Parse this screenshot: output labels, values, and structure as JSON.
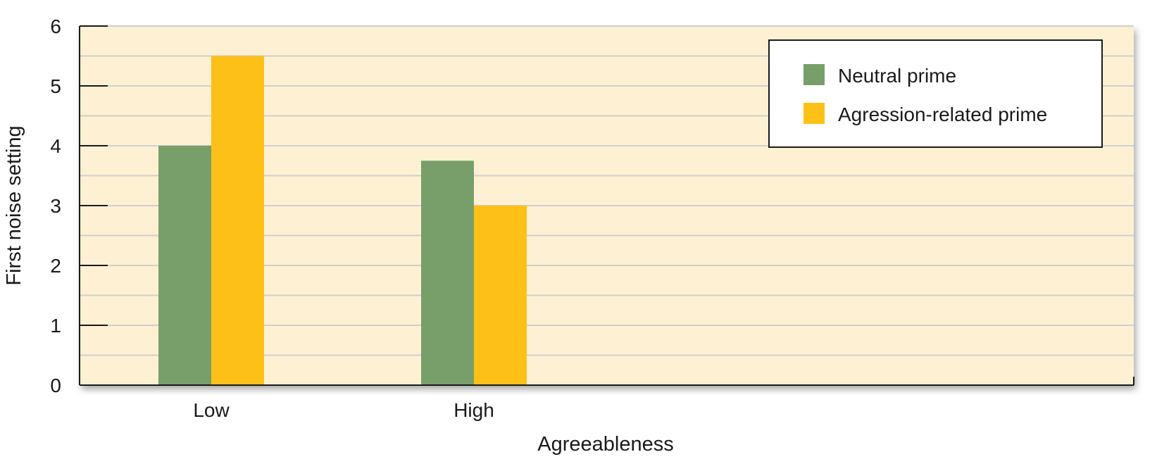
{
  "chart_data": {
    "type": "bar",
    "categories": [
      "Low",
      "High"
    ],
    "series": [
      {
        "name": "Neutral prime",
        "values": [
          4.0,
          3.75
        ],
        "color": "#789f69"
      },
      {
        "name": "Agression-related prime",
        "values": [
          5.5,
          3.0
        ],
        "color": "#fdc016"
      }
    ],
    "xlabel": "Agreeableness",
    "ylabel": "First noise setting",
    "ylim": [
      0,
      6
    ],
    "yticks": [
      "0",
      "1",
      "2",
      "3",
      "4",
      "5",
      "6"
    ],
    "grid": "horizontal",
    "legend": "top-right",
    "plot_background": "#fef1d3"
  }
}
